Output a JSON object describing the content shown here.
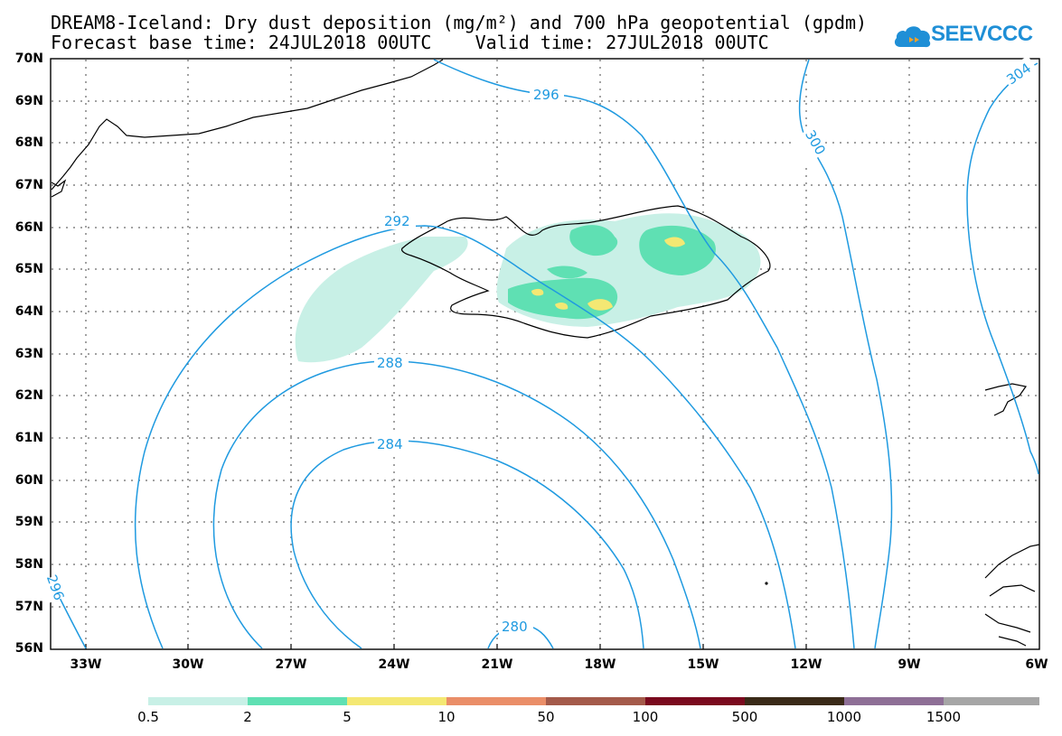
{
  "title_line1": "DREAM8-Iceland: Dry dust deposition (mg/m²) and 700 hPa geopotential (gpdm)",
  "title_line2": "Forecast base time: 24JUL2018 00UTC    Valid time: 27JUL2018 00UTC",
  "logo_text": "SEEVCCC",
  "lat_labels": [
    "70N",
    "69N",
    "68N",
    "67N",
    "66N",
    "65N",
    "64N",
    "63N",
    "62N",
    "61N",
    "60N",
    "59N",
    "58N",
    "57N",
    "56N"
  ],
  "lon_labels": [
    "33W",
    "30W",
    "27W",
    "24W",
    "21W",
    "18W",
    "15W",
    "12W",
    "9W",
    "6W"
  ],
  "contour_labels": [
    "296",
    "300",
    "304",
    "292",
    "288",
    "284",
    "280",
    "296"
  ],
  "colorbar": {
    "labels": [
      "0.5",
      "2",
      "5",
      "10",
      "50",
      "100",
      "500",
      "1000",
      "1500"
    ],
    "colors": [
      "#c8f0e6",
      "#5fe0b3",
      "#f4e873",
      "#ea8e68",
      "#a45a4a",
      "#7a0a1e",
      "#3a2a18",
      "#8e6f96",
      "#a6a6a6"
    ]
  },
  "contour_color": "#1f9ae0"
}
